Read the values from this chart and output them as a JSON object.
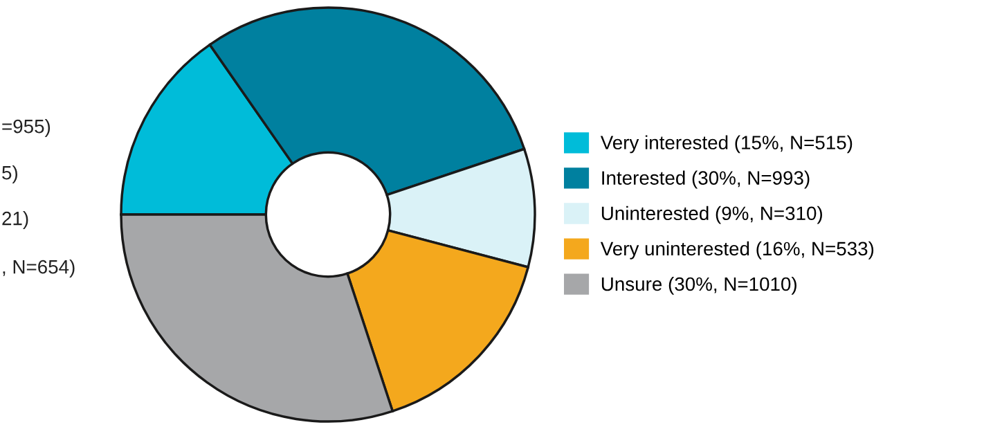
{
  "chart_data": {
    "type": "donut",
    "categories": [
      "Very interested (15%, N=515)",
      "Interested (30%, N=993)",
      "Uninterested (9%, N=310)",
      "Very uninterested (16%, N=533)",
      "Unsure (30%, N=1010)"
    ],
    "values": [
      515,
      993,
      310,
      533,
      1010
    ],
    "colors": [
      "#00bcd9",
      "#00809f",
      "#daf2f7",
      "#f4a81d",
      "#a6a7a9"
    ],
    "legend": "right",
    "annotations": [
      "=955)",
      "5)",
      "21)",
      ", N=654)"
    ]
  }
}
